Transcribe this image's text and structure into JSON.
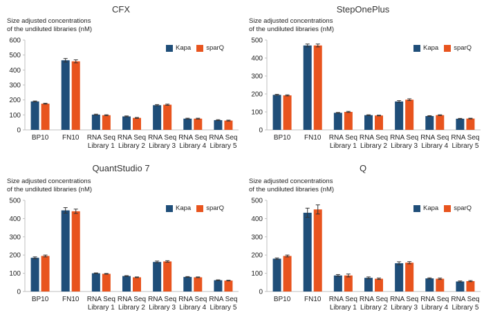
{
  "colors": {
    "kapa": "#1f4e79",
    "sparq": "#e8541e",
    "axis": "#bfbfbf",
    "grid": "#d9d9d9"
  },
  "chart_data": [
    {
      "type": "bar",
      "title": "CFX",
      "ylabel_line1": "Size adjusted concentrations",
      "ylabel_line2": "of the undiluted libraries (nM)",
      "ylim": [
        0,
        600
      ],
      "yticks": [
        0,
        100,
        200,
        300,
        400,
        500,
        600
      ],
      "categories": [
        [
          "BP10"
        ],
        [
          "FN10"
        ],
        [
          "RNA Seq",
          "Library 1"
        ],
        [
          "RNA Seq",
          "Library 2"
        ],
        [
          "RNA Seq",
          "Library 3"
        ],
        [
          "RNA Seq",
          "Library 4"
        ],
        [
          "RNA Seq",
          "Library 5"
        ]
      ],
      "legend": "top-right",
      "grid": false,
      "series": [
        {
          "name": "Kapa",
          "values": [
            190,
            465,
            102,
            90,
            165,
            75,
            65
          ],
          "errors": [
            3,
            12,
            3,
            3,
            4,
            3,
            3
          ]
        },
        {
          "name": "sparQ",
          "values": [
            175,
            458,
            98,
            80,
            168,
            75,
            62
          ],
          "errors": [
            3,
            10,
            3,
            3,
            4,
            3,
            3
          ]
        }
      ]
    },
    {
      "type": "bar",
      "title": "StepOnePlus",
      "ylabel_line1": "Size adjusted concentrations",
      "ylabel_line2": "of the undiluted libraries (nM)",
      "ylim": [
        0,
        500
      ],
      "yticks": [
        0,
        100,
        200,
        300,
        400,
        500
      ],
      "categories": [
        [
          "BP10"
        ],
        [
          "FN10"
        ],
        [
          "RNA Seq",
          "Library 1"
        ],
        [
          "RNA Seq",
          "Library 2"
        ],
        [
          "RNA Seq",
          "Library 3"
        ],
        [
          "RNA Seq",
          "Library 4"
        ],
        [
          "RNA Seq",
          "Library 5"
        ]
      ],
      "legend": "top-right",
      "grid": false,
      "series": [
        {
          "name": "Kapa",
          "values": [
            195,
            470,
            95,
            82,
            158,
            77,
            62
          ],
          "errors": [
            3,
            8,
            2,
            2,
            5,
            2,
            2
          ]
        },
        {
          "name": "sparQ",
          "values": [
            192,
            470,
            100,
            80,
            168,
            82,
            63
          ],
          "errors": [
            3,
            8,
            3,
            2,
            5,
            2,
            2
          ]
        }
      ]
    },
    {
      "type": "bar",
      "title": "QuantStudio 7",
      "ylabel_line1": "Size adjusted concentrations",
      "ylabel_line2": "of the undiluted libraries (nM)",
      "ylim": [
        0,
        500
      ],
      "yticks": [
        0,
        100,
        200,
        300,
        400,
        500
      ],
      "categories": [
        [
          "BP10"
        ],
        [
          "FN10"
        ],
        [
          "RNA Seq",
          "Library 1"
        ],
        [
          "RNA Seq",
          "Library 2"
        ],
        [
          "RNA Seq",
          "Library 3"
        ],
        [
          "RNA Seq",
          "Library 4"
        ],
        [
          "RNA Seq",
          "Library 5"
        ]
      ],
      "legend": "top-right",
      "grid": false,
      "series": [
        {
          "name": "Kapa",
          "values": [
            185,
            445,
            100,
            85,
            162,
            80,
            62
          ],
          "errors": [
            5,
            15,
            2,
            2,
            5,
            2,
            2
          ]
        },
        {
          "name": "sparQ",
          "values": [
            195,
            440,
            97,
            78,
            165,
            78,
            60
          ],
          "errors": [
            5,
            12,
            2,
            2,
            4,
            2,
            2
          ]
        }
      ]
    },
    {
      "type": "bar",
      "title": "Q",
      "ylabel_line1": "Size adjusted concentrations",
      "ylabel_line2": "of the undiluted libraries (nM)",
      "ylim": [
        0,
        500
      ],
      "yticks": [
        0,
        100,
        200,
        300,
        400,
        500
      ],
      "categories": [
        [
          "BP10"
        ],
        [
          "FN10"
        ],
        [
          "RNA Seq",
          "Library 1"
        ],
        [
          "RNA Seq",
          "Library 2"
        ],
        [
          "RNA Seq",
          "Library 3"
        ],
        [
          "RNA Seq",
          "Library 4"
        ],
        [
          "RNA Seq",
          "Library 5"
        ]
      ],
      "legend": "top-right",
      "grid": false,
      "series": [
        {
          "name": "Kapa",
          "values": [
            180,
            432,
            88,
            75,
            155,
            72,
            55
          ],
          "errors": [
            4,
            25,
            5,
            5,
            8,
            3,
            3
          ]
        },
        {
          "name": "sparQ",
          "values": [
            195,
            450,
            88,
            70,
            158,
            70,
            57
          ],
          "errors": [
            5,
            25,
            8,
            4,
            6,
            4,
            3
          ]
        }
      ]
    }
  ]
}
